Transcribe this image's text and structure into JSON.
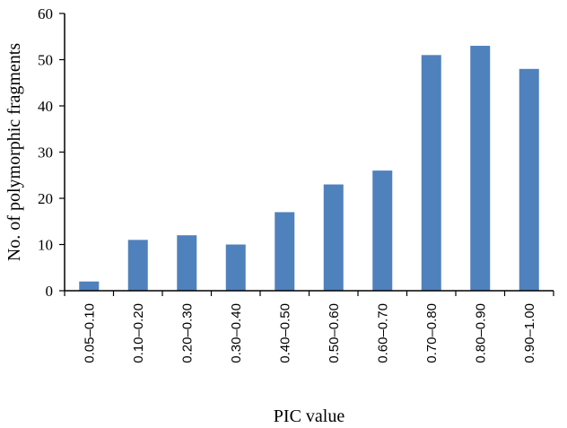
{
  "chart_data": {
    "type": "bar",
    "title": "",
    "xlabel": "PIC value",
    "ylabel": "No. of polymorphic fragments",
    "categories": [
      "0.05–0.10",
      "0.10–0.20",
      "0.20–0.30",
      "0.30–0.40",
      "0.40–0.50",
      "0.50–0.60",
      "0.60–0.70",
      "0.70–0.80",
      "0.80–0.90",
      "0.90–1.00"
    ],
    "values": [
      2,
      11,
      12,
      10,
      17,
      23,
      26,
      51,
      53,
      48
    ],
    "ylim": [
      0,
      60
    ],
    "yticks": [
      0,
      10,
      20,
      30,
      40,
      50,
      60
    ],
    "grid": false,
    "legend": "none",
    "colors": {
      "bar": "#4F81BD",
      "axis": "#000000"
    }
  }
}
